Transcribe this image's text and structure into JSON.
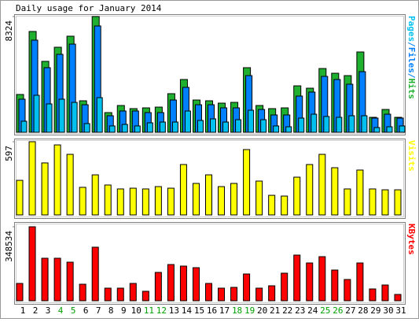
{
  "chart_data": [
    {
      "type": "bar",
      "title": "Daily usage for January 2014",
      "categories": [
        "1",
        "2",
        "3",
        "4",
        "5",
        "6",
        "7",
        "8",
        "9",
        "10",
        "11",
        "12",
        "13",
        "14",
        "15",
        "16",
        "17",
        "18",
        "19",
        "20",
        "21",
        "22",
        "23",
        "24",
        "25",
        "26",
        "27",
        "28",
        "29",
        "30",
        "31"
      ],
      "category_colors": [
        "#000000",
        "#000000",
        "#000000",
        "#00a000",
        "#00a000",
        "#000000",
        "#000000",
        "#000000",
        "#000000",
        "#000000",
        "#00a000",
        "#00a000",
        "#000000",
        "#000000",
        "#000000",
        "#000000",
        "#000000",
        "#00a000",
        "#00a000",
        "#000000",
        "#000000",
        "#000000",
        "#000000",
        "#000000",
        "#00a000",
        "#00a000",
        "#000000",
        "#000000",
        "#000000",
        "#000000",
        "#000000"
      ],
      "ylim": [
        0,
        8324
      ],
      "yticks": [
        8324
      ],
      "legend_separator": "/",
      "series": [
        {
          "name": "Pages",
          "color": "#00c0f0",
          "values": [
            795,
            2660,
            2040,
            2380,
            2150,
            625,
            2490,
            455,
            565,
            455,
            680,
            735,
            735,
            1530,
            850,
            965,
            735,
            905,
            1585,
            905,
            455,
            395,
            1020,
            1300,
            1135,
            1075,
            1190,
            1190,
            340,
            395,
            455
          ]
        },
        {
          "name": "Files",
          "color": "#0080ff",
          "values": [
            2380,
            6625,
            4645,
            5605,
            6340,
            1980,
            7645,
            1190,
            1530,
            1530,
            1415,
            1415,
            2320,
            3230,
            1980,
            1980,
            1755,
            1755,
            4075,
            1640,
            1245,
            1245,
            2605,
            2890,
            4020,
            3795,
            3455,
            4360,
            1020,
            1300,
            1020
          ]
        },
        {
          "name": "Hits",
          "color": "#20b030",
          "values": [
            2718,
            7250,
            5100,
            6115,
            6910,
            2265,
            8324,
            1415,
            1925,
            1700,
            1755,
            1810,
            2775,
            3795,
            2320,
            2265,
            2095,
            2150,
            4645,
            1925,
            1700,
            1755,
            3340,
            3170,
            4585,
            4245,
            4075,
            5775,
            1075,
            1640,
            1075
          ]
        }
      ]
    },
    {
      "type": "bar",
      "ylim": [
        0,
        597
      ],
      "yticks": [
        597
      ],
      "series": [
        {
          "name": "Visits",
          "color": "#ffff00",
          "values": [
            282,
            597,
            424,
            571,
            494,
            225,
            327,
            244,
            212,
            218,
            212,
            231,
            218,
            411,
            257,
            327,
            231,
            257,
            533,
            276,
            160,
            154,
            308,
            411,
            494,
            385,
            212,
            366,
            212,
            205,
            205
          ]
        }
      ]
    },
    {
      "type": "bar",
      "ylim": [
        0,
        348534
      ],
      "yticks": [
        348534
      ],
      "series": [
        {
          "name": "KBytes",
          "color": "#ff0000",
          "values": [
            81570,
            348534,
            200220,
            200220,
            181680,
            77860,
            252130,
            59320,
            59320,
            81570,
            44490,
            133480,
            170560,
            163140,
            155730,
            81570,
            59320,
            63030,
            126070,
            59320,
            70450,
            129770,
            215050,
            177970,
            207630,
            144600,
            100110,
            177970,
            55620,
            74160,
            29660
          ]
        }
      ]
    }
  ]
}
